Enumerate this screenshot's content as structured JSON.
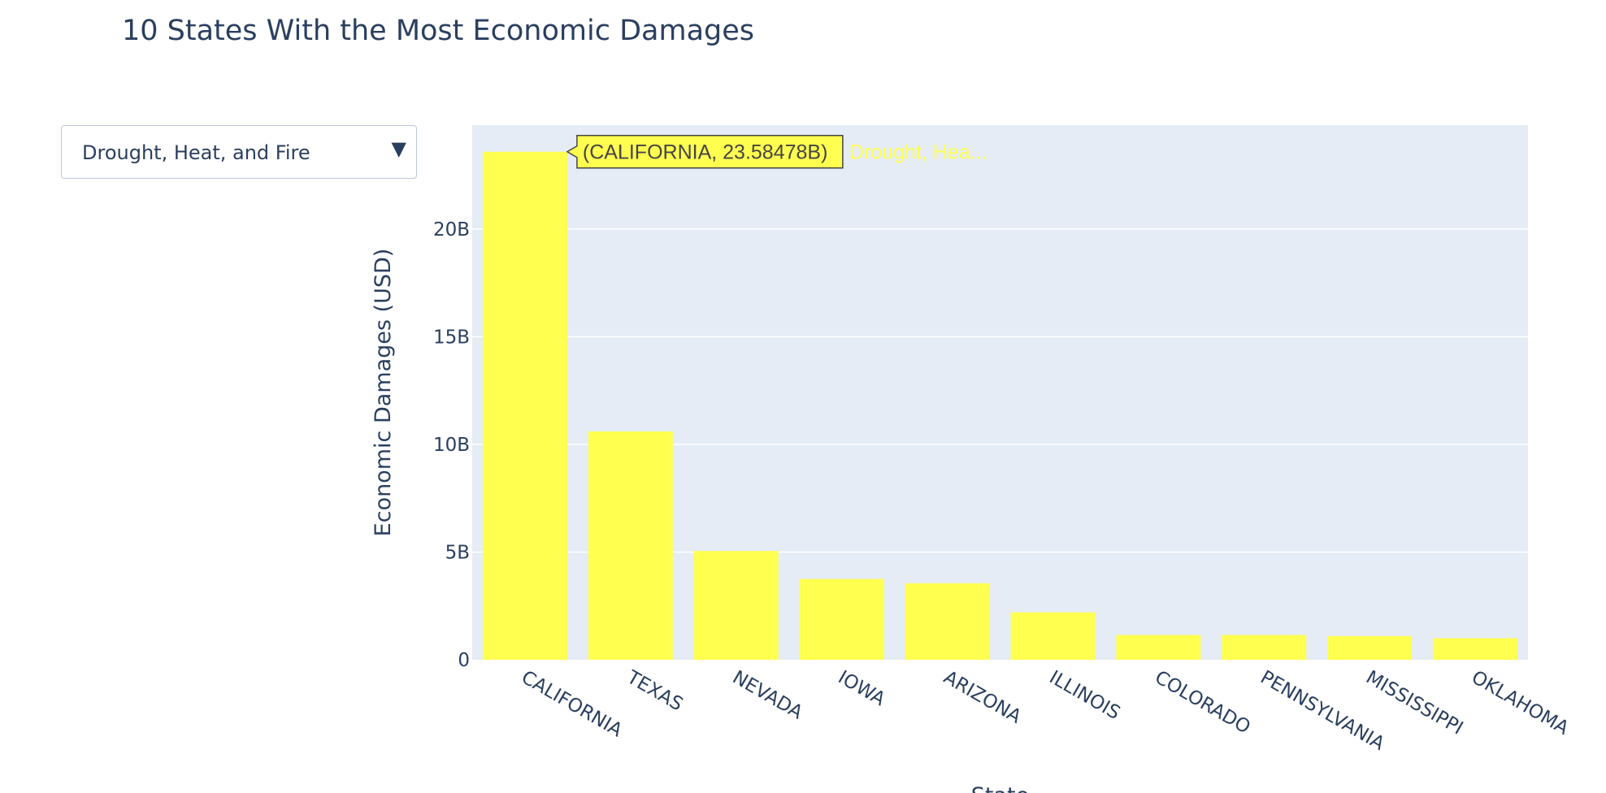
{
  "page_title": "10 States With the Most Economic Damages",
  "dropdown": {
    "selected": "Drought, Heat, and Fire",
    "arrow_icon": "triangle-down-icon"
  },
  "chart_data": {
    "type": "bar",
    "categories": [
      "CALIFORNIA",
      "TEXAS",
      "NEVADA",
      "IOWA",
      "ARIZONA",
      "ILLINOIS",
      "COLORADO",
      "PENNSYLVANIA",
      "MISSISSIPPI",
      "OKLAHOMA"
    ],
    "series": [
      {
        "name": "Drought, Hea...",
        "values": [
          23.58478,
          10.6,
          5.05,
          3.75,
          3.55,
          2.2,
          1.15,
          1.15,
          1.1,
          1.0
        ],
        "color": "#ffff4f"
      }
    ],
    "value_unit": "B",
    "title": "10 States With the Most Economic Damages",
    "xlabel": "State",
    "ylabel": "Economic Damages (USD)",
    "ylim": [
      0,
      24.82
    ],
    "yticks": [
      0,
      5,
      10,
      15,
      20
    ],
    "ytick_labels": [
      "0",
      "5B",
      "10B",
      "15B",
      "20B"
    ],
    "grid": true,
    "plot_bg": "#e5ecf6",
    "hover": {
      "text": "(CALIFORNIA, 23.58478B)",
      "trace_label": "Drought, Hea...",
      "category": "CALIFORNIA"
    }
  }
}
